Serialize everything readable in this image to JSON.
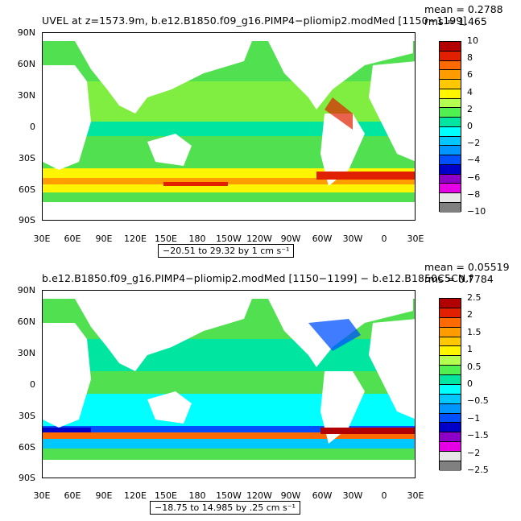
{
  "panel1": {
    "title": "UVEL at z=1573.9m, b.e12.B1850.f09_g16.PIMP4−pliomip2.modMed [1150−1199]",
    "mean": "mean = 0.2788",
    "rms": "rms = 1.465",
    "range": "−20.51 to 29.32 by 1 cm s⁻¹",
    "colorbar_labels": [
      "10",
      "8",
      "6",
      "4",
      "2",
      "0",
      "−2",
      "−4",
      "−6",
      "−8",
      "−10"
    ]
  },
  "panel2": {
    "title": "b.e12.B1850.f09_g16.PIMP4−pliomip2.modMed [1150−1199] − b.e12.B1850C5CN.f",
    "mean": "mean = 0.05519",
    "rms": "rms = 0.7784",
    "range": "−18.75 to 14.985 by .25 cm s⁻¹",
    "colorbar_labels": [
      "2.5",
      "2",
      "1.5",
      "1",
      "0.5",
      "0",
      "−0.5",
      "−1",
      "−1.5",
      "−2",
      "−2.5"
    ]
  },
  "lat_labels": [
    "90N",
    "60N",
    "30N",
    "0",
    "30S",
    "60S",
    "90S"
  ],
  "lon_labels": [
    "30E",
    "60E",
    "90E",
    "120E",
    "150E",
    "180",
    "150W",
    "120W",
    "90W",
    "60W",
    "30W",
    "0",
    "30E"
  ],
  "colorbar_colors": [
    "#b20000",
    "#e02000",
    "#ff6a00",
    "#ff9c00",
    "#ffc800",
    "#fff500",
    "#b4ff50",
    "#50f050",
    "#00e6a0",
    "#00ffff",
    "#00c8ff",
    "#0096ff",
    "#0050ff",
    "#0000c8",
    "#8c00c8",
    "#e600e6",
    "#e6e6e6",
    "#808080"
  ]
}
